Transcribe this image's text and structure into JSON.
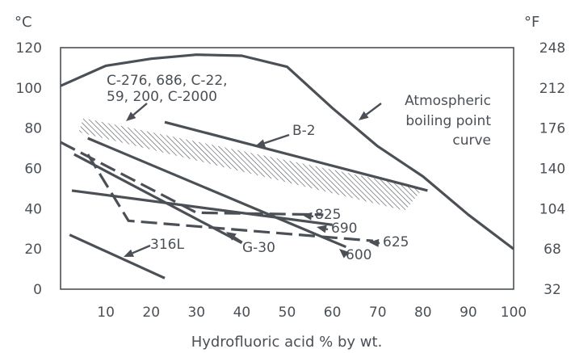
{
  "chart_data": {
    "type": "line",
    "xlabel": "Hydrofluoric acid % by wt.",
    "ylabel_left": "°C",
    "ylabel_right": "°F",
    "xlim": [
      0,
      100
    ],
    "ylim": [
      0,
      120
    ],
    "xticks": [
      "10",
      "20",
      "30",
      "40",
      "50",
      "60",
      "70",
      "80",
      "90",
      "100"
    ],
    "yticks_left": [
      "0",
      "20",
      "40",
      "60",
      "80",
      "100",
      "120"
    ],
    "yticks_right": [
      "32",
      "68",
      "104",
      "140",
      "176",
      "212",
      "248"
    ],
    "grid": false,
    "colors": {
      "line": "#4a5056",
      "frame": "#4a5056",
      "text": "#4a5056",
      "hatch": "#4a5056"
    },
    "series": [
      {
        "name": "Atmospheric boiling point curve",
        "style": "solid",
        "x": [
          0,
          10,
          20,
          30,
          40,
          50,
          60,
          70,
          80,
          90,
          100
        ],
        "y": [
          101,
          111,
          114.5,
          116.5,
          116,
          110.5,
          90,
          71,
          56,
          37,
          20
        ]
      },
      {
        "name": "B-2",
        "style": "solid",
        "x": [
          23,
          81
        ],
        "y": [
          83,
          49
        ]
      },
      {
        "name": "690",
        "style": "solid",
        "x": [
          2.5,
          60
        ],
        "y": [
          49,
          32
        ]
      },
      {
        "name": "600",
        "style": "solid",
        "x": [
          6,
          63
        ],
        "y": [
          75,
          21
        ]
      },
      {
        "name": "G-30",
        "style": "solid",
        "x": [
          3,
          40
        ],
        "y": [
          67,
          23
        ]
      },
      {
        "name": "316L",
        "style": "solid",
        "x": [
          2,
          23
        ],
        "y": [
          27,
          5.5
        ]
      },
      {
        "name": "825",
        "style": "dashed",
        "x": [
          0,
          30,
          58
        ],
        "y": [
          73,
          38,
          37
        ]
      },
      {
        "name": "625",
        "style": "dashed",
        "x": [
          6,
          15,
          69
        ],
        "y": [
          67,
          34,
          24
        ]
      }
    ],
    "band": {
      "name": "C-276, 686, C-22, 59, 200, C-2000",
      "upper": [
        [
          5,
          85
        ],
        [
          80,
          50
        ]
      ],
      "lower": [
        [
          4,
          78
        ],
        [
          76,
          39
        ]
      ]
    },
    "annotations": {
      "atmospheric": [
        "Atmospheric",
        "boiling point",
        "curve"
      ],
      "band_label": [
        "C-276, 686, C-22,",
        "59, 200, C-2000"
      ],
      "b2": "B-2",
      "l825": "825",
      "l690": "690",
      "l625": "625",
      "l600": "600",
      "g30": "G-30",
      "l316": "316L"
    }
  }
}
